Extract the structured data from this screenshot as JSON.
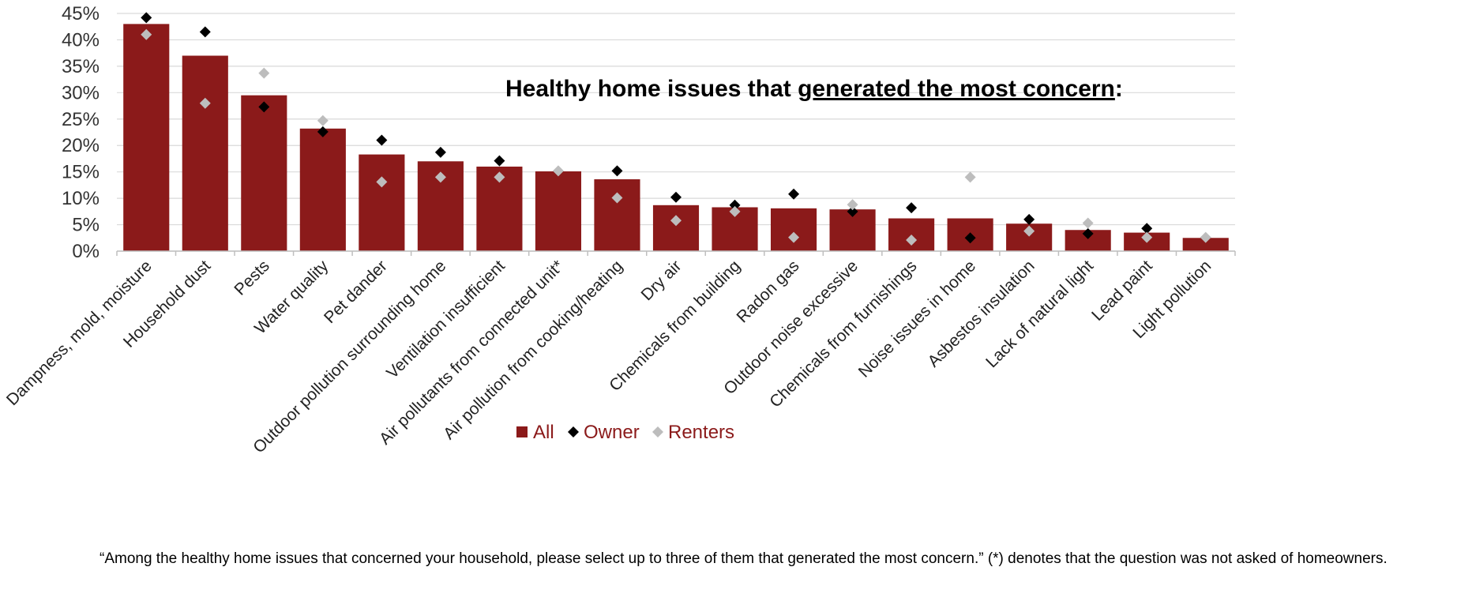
{
  "chart_data": {
    "type": "bar",
    "title_pre": "Healthy home issues that ",
    "title_underlined": "generated the most concern",
    "title_post": ":",
    "ylim": [
      0,
      0.45
    ],
    "yticks": [
      "0%",
      "5%",
      "10%",
      "15%",
      "20%",
      "25%",
      "30%",
      "35%",
      "40%",
      "45%"
    ],
    "grid": true,
    "legend_position": "bottom-center",
    "categories": [
      "Dampness, mold, moisture",
      "Household dust",
      "Pests",
      "Water quality",
      "Pet dander",
      "Outdoor pollution surrounding home",
      "Ventilation insufficient",
      "Air pollutants from connected unit*",
      "Air pollution from cooking/heating",
      "Dry air",
      "Chemicals from building",
      "Radon gas",
      "Outdoor noise excessive",
      "Chemicals from furnishings",
      "Noise issues in home",
      "Asbestos insulation",
      "Lack of natural light",
      "Lead paint",
      "Light pollution"
    ],
    "series": [
      {
        "name": "All",
        "kind": "bar",
        "color": "#8b1a1a",
        "values": [
          0.43,
          0.37,
          0.295,
          0.232,
          0.183,
          0.17,
          0.16,
          0.151,
          0.136,
          0.087,
          0.083,
          0.081,
          0.079,
          0.062,
          0.062,
          0.052,
          0.04,
          0.035,
          0.025
        ]
      },
      {
        "name": "Owner",
        "kind": "marker",
        "color": "#000000",
        "values": [
          0.442,
          0.415,
          0.273,
          0.226,
          0.21,
          0.187,
          0.171,
          null,
          0.152,
          0.102,
          0.087,
          0.108,
          0.075,
          0.082,
          0.025,
          0.06,
          0.033,
          0.043,
          null
        ]
      },
      {
        "name": "Renters",
        "kind": "marker",
        "color": "#bdbdbd",
        "values": [
          0.41,
          0.28,
          0.337,
          0.247,
          0.131,
          0.14,
          0.14,
          0.152,
          0.101,
          0.058,
          0.075,
          0.026,
          0.088,
          0.021,
          0.14,
          0.038,
          0.053,
          0.026,
          0.026
        ]
      }
    ]
  },
  "footnote": "“Among the healthy home issues that concerned your household, please select up to three of them that generated the most concern.” (*) denotes that the question was not asked of homeowners."
}
